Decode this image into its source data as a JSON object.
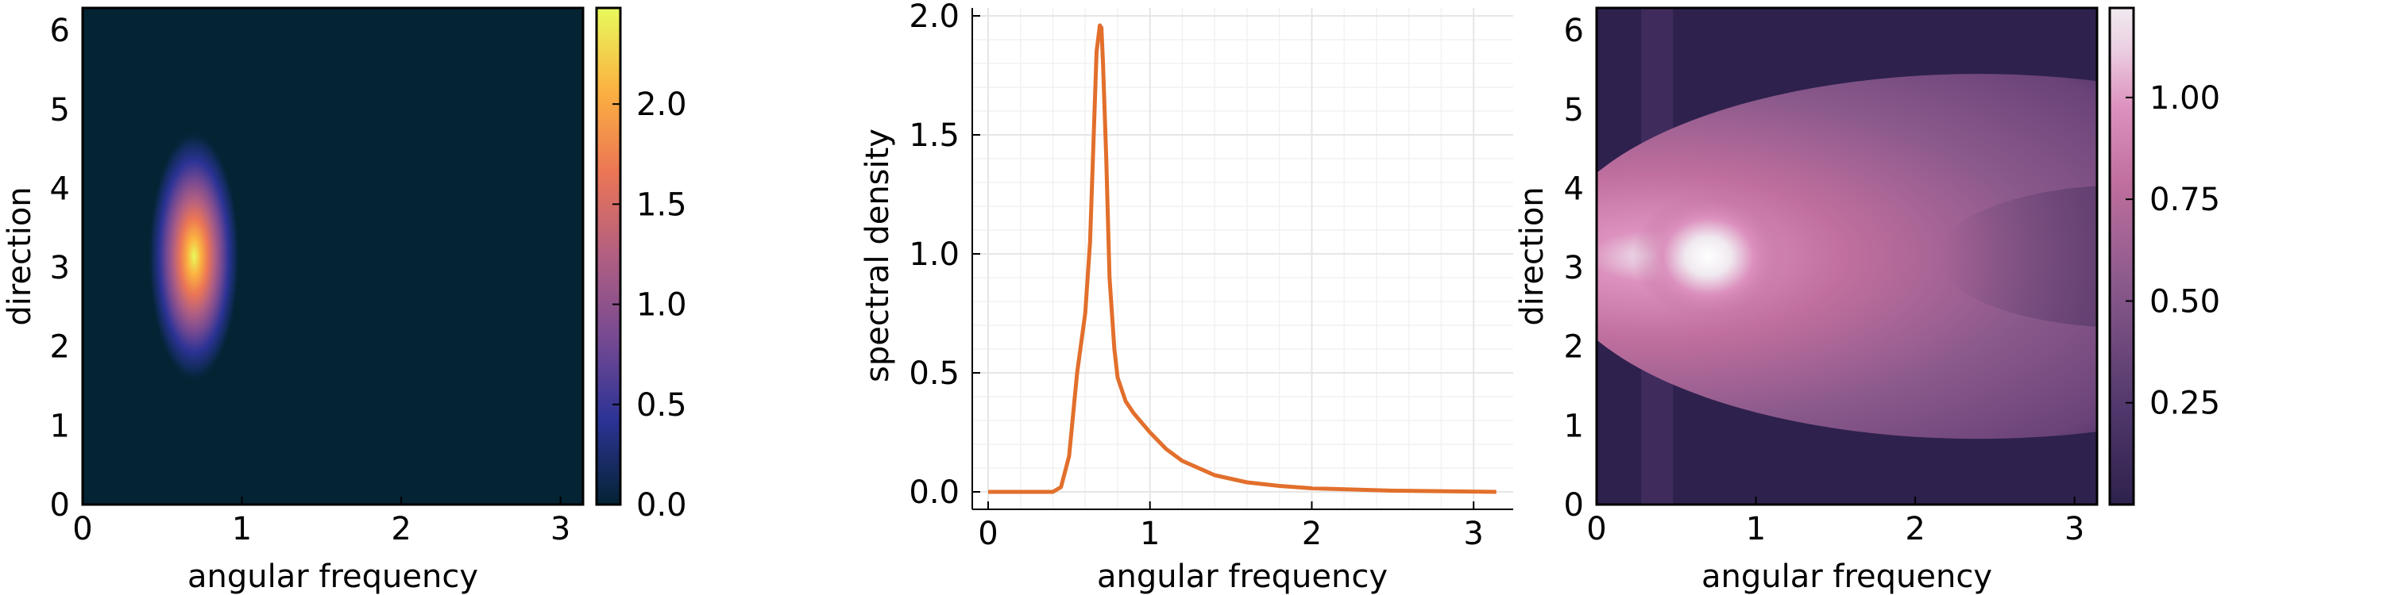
{
  "chart_data": [
    {
      "type": "heatmap",
      "xlabel": "angular frequency",
      "ylabel": "direction",
      "xlim": [
        0,
        3.1416
      ],
      "ylim": [
        0,
        6.2832
      ],
      "xticks": [
        "0",
        "1",
        "2",
        "3"
      ],
      "yticks": [
        "0",
        "1",
        "2",
        "3",
        "4",
        "5",
        "6"
      ],
      "colorbar": {
        "range": [
          0,
          2.48
        ],
        "ticks": [
          "0.0",
          "0.5",
          "1.0",
          "1.5",
          "2.0"
        ],
        "tick_values": [
          0,
          0.5,
          1.0,
          1.5,
          2.0
        ],
        "colormap": "thermal",
        "colors": [
          "#042333",
          "#2c3395",
          "#744992",
          "#b15f82",
          "#eb7655",
          "#fbb041",
          "#e8fa5b"
        ]
      },
      "peak": {
        "x": 0.7,
        "y": 3.14,
        "value": 2.48
      }
    },
    {
      "type": "line",
      "xlabel": "angular frequency",
      "ylabel": "spectral density",
      "xlim": [
        0,
        3.1416
      ],
      "ylim": [
        0,
        2.0
      ],
      "xticks": [
        "0",
        "1",
        "2",
        "3"
      ],
      "yticks": [
        "0.0",
        "0.5",
        "1.0",
        "1.5",
        "2.0"
      ],
      "grid": true,
      "color": "#e26f2c",
      "series": [
        {
          "x": [
            0.0,
            0.3,
            0.4,
            0.45,
            0.5,
            0.55,
            0.6,
            0.63,
            0.65,
            0.67,
            0.69,
            0.7,
            0.71,
            0.73,
            0.75,
            0.78,
            0.8,
            0.85,
            0.9,
            1.0,
            1.1,
            1.2,
            1.4,
            1.6,
            1.8,
            2.0,
            2.5,
            3.14
          ],
          "values": [
            0.0,
            0.0,
            0.0,
            0.02,
            0.15,
            0.5,
            0.75,
            1.05,
            1.45,
            1.85,
            1.96,
            1.95,
            1.8,
            1.4,
            0.9,
            0.6,
            0.48,
            0.38,
            0.33,
            0.25,
            0.18,
            0.13,
            0.07,
            0.04,
            0.025,
            0.015,
            0.005,
            0.0
          ]
        }
      ]
    },
    {
      "type": "heatmap",
      "xlabel": "angular frequency",
      "ylabel": "direction",
      "xlim": [
        0,
        3.1416
      ],
      "ylim": [
        0,
        6.2832
      ],
      "xticks": [
        "0",
        "1",
        "2",
        "3"
      ],
      "yticks": [
        "0",
        "1",
        "2",
        "3",
        "4",
        "5",
        "6"
      ],
      "colorbar": {
        "range": [
          0,
          1.22
        ],
        "ticks": [
          "0.25",
          "0.50",
          "0.75",
          "1.00"
        ],
        "tick_values": [
          0.25,
          0.5,
          0.75,
          1.0
        ],
        "colormap": "acton",
        "colors": [
          "#2e214d",
          "#52386d",
          "#8c5a8c",
          "#c06f9e",
          "#dc91be",
          "#ecd0e2",
          "#f0eaf0"
        ]
      },
      "peak": {
        "x": 0.7,
        "y": 3.14,
        "value": 1.22
      }
    }
  ]
}
